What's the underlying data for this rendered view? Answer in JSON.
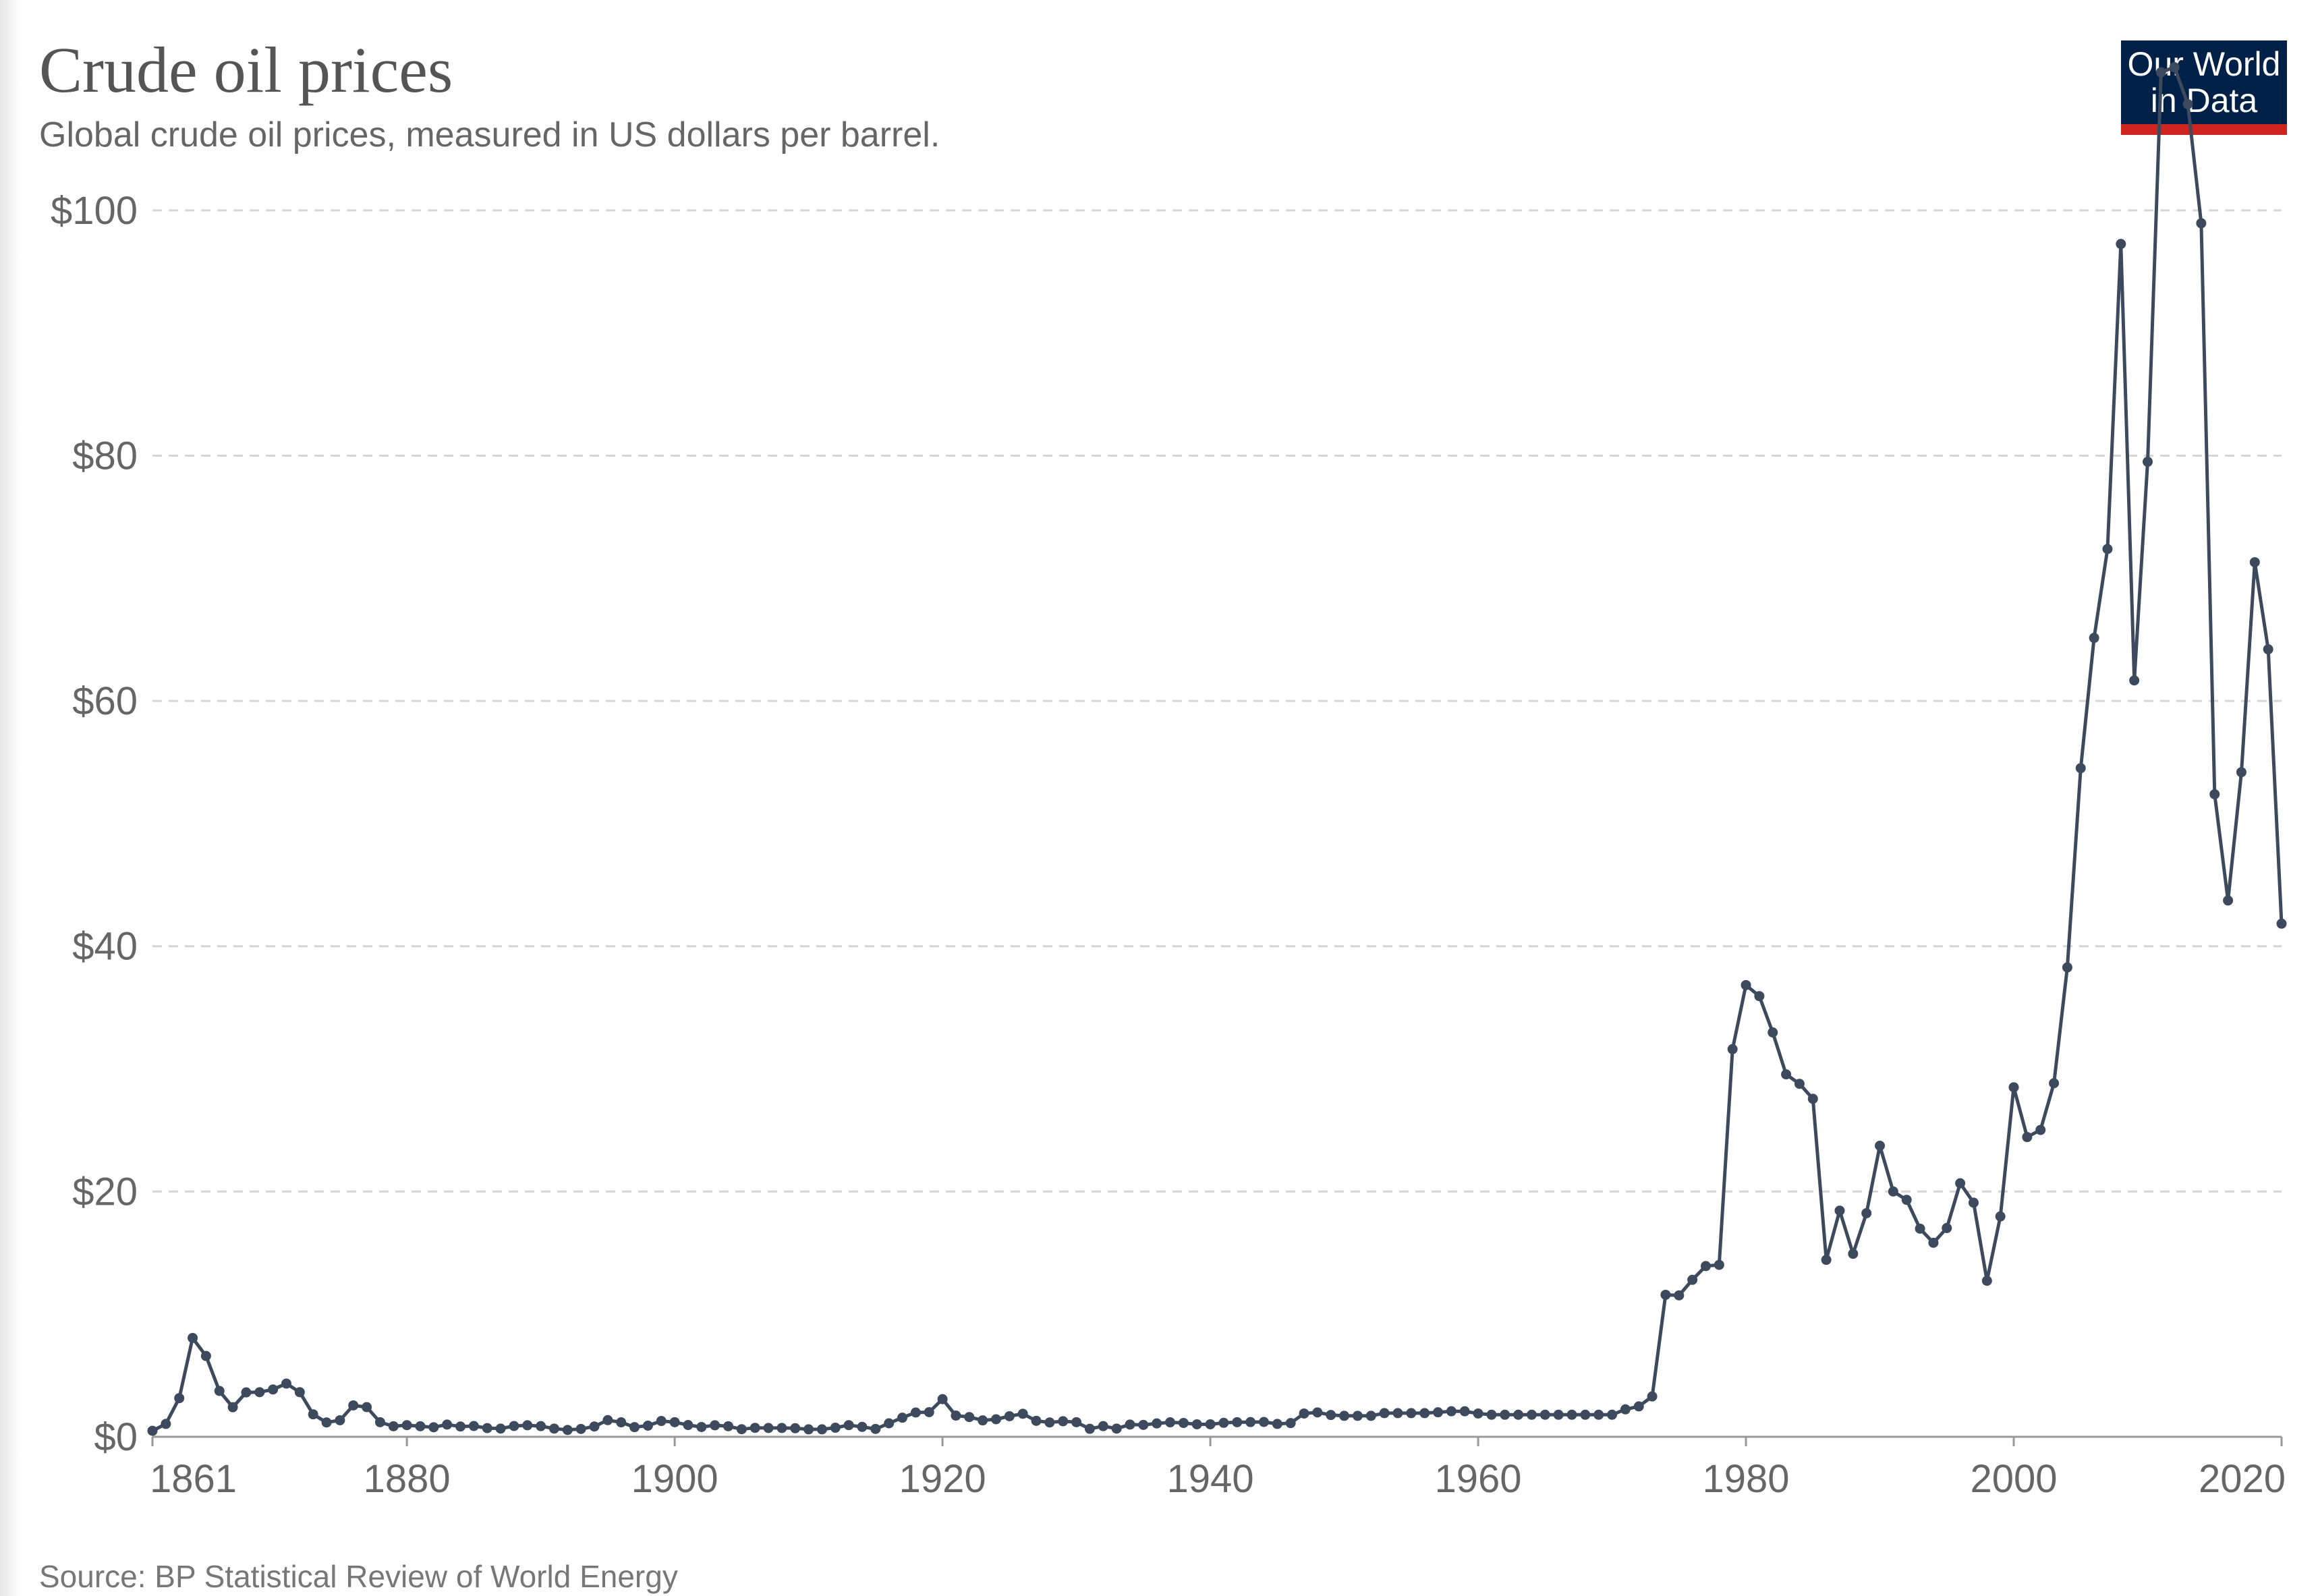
{
  "header": {
    "title": "Crude oil prices",
    "subtitle": "Global crude oil prices, measured in US dollars per barrel."
  },
  "logo": {
    "line1": "Our World",
    "line2": "in Data",
    "bg_color": "#002147",
    "accent_color": "#ce261e"
  },
  "footer": {
    "source": "Source: BP Statistical Review of World Energy"
  },
  "chart_data": {
    "type": "line",
    "title": "Crude oil prices",
    "subtitle": "Global crude oil prices, measured in US dollars per barrel.",
    "xlabel": "",
    "ylabel": "",
    "xlim": [
      1861,
      2020
    ],
    "ylim": [
      0,
      110
    ],
    "grid": "horizontal dashed",
    "line_color": "#3d4a5d",
    "x_ticks": [
      {
        "value": 1861,
        "label": "1861"
      },
      {
        "value": 1880,
        "label": "1880"
      },
      {
        "value": 1900,
        "label": "1900"
      },
      {
        "value": 1920,
        "label": "1920"
      },
      {
        "value": 1940,
        "label": "1940"
      },
      {
        "value": 1960,
        "label": "1960"
      },
      {
        "value": 1980,
        "label": "1980"
      },
      {
        "value": 2000,
        "label": "2000"
      },
      {
        "value": 2020,
        "label": "2020"
      }
    ],
    "y_ticks": [
      {
        "value": 0,
        "label": "$0"
      },
      {
        "value": 20,
        "label": "$20"
      },
      {
        "value": 40,
        "label": "$40"
      },
      {
        "value": 60,
        "label": "$60"
      },
      {
        "value": 80,
        "label": "$80"
      },
      {
        "value": 100,
        "label": "$100"
      }
    ],
    "series": [
      {
        "x": [
          1861,
          1862,
          1863,
          1864,
          1865,
          1866,
          1867,
          1868,
          1869,
          1870,
          1871,
          1872,
          1873,
          1874,
          1875,
          1876,
          1877,
          1878,
          1879,
          1880,
          1881,
          1882,
          1883,
          1884,
          1885,
          1886,
          1887,
          1888,
          1889,
          1890,
          1891,
          1892,
          1893,
          1894,
          1895,
          1896,
          1897,
          1898,
          1899,
          1900,
          1901,
          1902,
          1903,
          1904,
          1905,
          1906,
          1907,
          1908,
          1909,
          1910,
          1911,
          1912,
          1913,
          1914,
          1915,
          1916,
          1917,
          1918,
          1919,
          1920,
          1921,
          1922,
          1923,
          1924,
          1925,
          1926,
          1927,
          1928,
          1929,
          1930,
          1931,
          1932,
          1933,
          1934,
          1935,
          1936,
          1937,
          1938,
          1939,
          1940,
          1941,
          1942,
          1943,
          1944,
          1945,
          1946,
          1947,
          1948,
          1949,
          1950,
          1951,
          1952,
          1953,
          1954,
          1955,
          1956,
          1957,
          1958,
          1959,
          1960,
          1961,
          1962,
          1963,
          1964,
          1965,
          1966,
          1967,
          1968,
          1969,
          1970,
          1971,
          1972,
          1973,
          1974,
          1975,
          1976,
          1977,
          1978,
          1979,
          1980,
          1981,
          1982,
          1983,
          1984,
          1985,
          1986,
          1987,
          1988,
          1989,
          1990,
          1991,
          1992,
          1993,
          1994,
          1995,
          1996,
          1997,
          1998,
          1999,
          2000,
          2001,
          2002,
          2003,
          2004,
          2005,
          2006,
          2007,
          2008,
          2009,
          2010,
          2011,
          2012,
          2013,
          2014,
          2015,
          2016,
          2017,
          2018,
          2019,
          2020
        ],
        "y": [
          0.49,
          1.05,
          3.15,
          8.06,
          6.59,
          3.74,
          2.41,
          3.62,
          3.64,
          3.86,
          4.34,
          3.64,
          1.83,
          1.17,
          1.35,
          2.56,
          2.42,
          1.19,
          0.86,
          0.95,
          0.86,
          0.78,
          1.0,
          0.84,
          0.88,
          0.71,
          0.67,
          0.88,
          0.94,
          0.87,
          0.67,
          0.56,
          0.64,
          0.84,
          1.36,
          1.18,
          0.79,
          0.91,
          1.29,
          1.19,
          0.96,
          0.8,
          0.94,
          0.86,
          0.62,
          0.73,
          0.72,
          0.72,
          0.7,
          0.61,
          0.61,
          0.74,
          0.95,
          0.81,
          0.64,
          1.1,
          1.56,
          1.98,
          2.01,
          3.07,
          1.73,
          1.61,
          1.34,
          1.43,
          1.68,
          1.88,
          1.3,
          1.17,
          1.27,
          1.19,
          0.65,
          0.87,
          0.67,
          1.0,
          0.97,
          1.09,
          1.18,
          1.13,
          1.02,
          1.02,
          1.14,
          1.19,
          1.2,
          1.21,
          1.05,
          1.12,
          1.9,
          1.99,
          1.78,
          1.71,
          1.71,
          1.71,
          1.93,
          1.93,
          1.93,
          1.93,
          2.0,
          2.08,
          2.08,
          1.9,
          1.8,
          1.8,
          1.8,
          1.8,
          1.8,
          1.8,
          1.8,
          1.8,
          1.8,
          1.8,
          2.24,
          2.48,
          3.29,
          11.58,
          11.53,
          12.8,
          13.92,
          14.02,
          31.61,
          36.83,
          35.93,
          32.97,
          29.55,
          28.78,
          27.56,
          14.43,
          18.44,
          14.92,
          18.23,
          23.73,
          20.0,
          19.32,
          16.97,
          15.82,
          17.02,
          20.67,
          19.09,
          12.72,
          17.97,
          28.5,
          24.44,
          25.02,
          28.83,
          38.27,
          54.52,
          65.14,
          72.39,
          97.26,
          61.67,
          79.5,
          111.26,
          111.67,
          108.66,
          98.95,
          52.39,
          43.73,
          54.19,
          71.31,
          64.21,
          41.84
        ]
      }
    ]
  }
}
